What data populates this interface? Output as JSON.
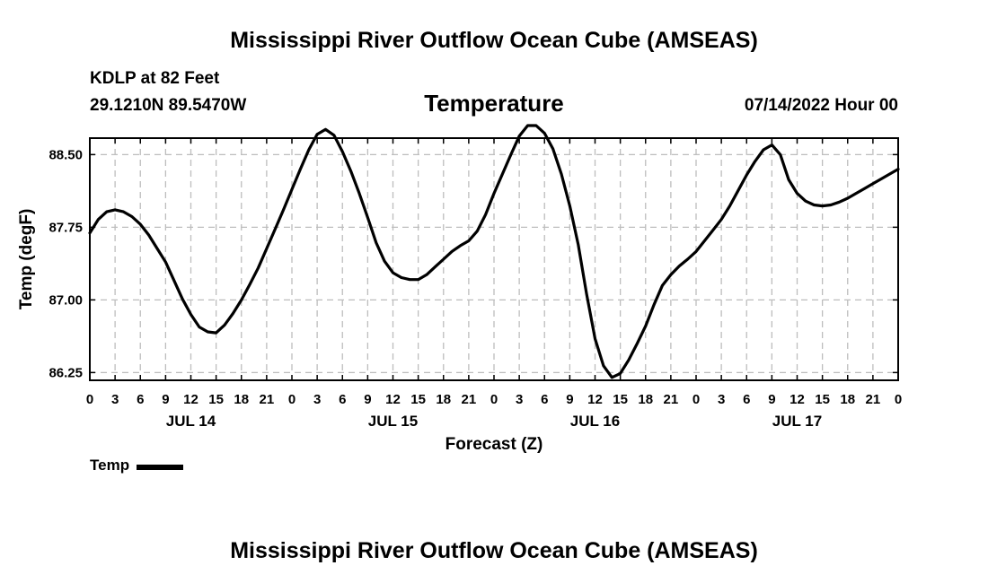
{
  "header": {
    "title": "Mississippi River Outflow Ocean Cube (AMSEAS)",
    "station": "KDLP at 82 Feet",
    "coords": "29.1210N  89.5470W",
    "variable": "Temperature",
    "datetime": "07/14/2022 Hour 00"
  },
  "footer": {
    "title": "Mississippi River Outflow Ocean Cube (AMSEAS)"
  },
  "legend": {
    "label": "Temp"
  },
  "chart_data": {
    "type": "line",
    "xlabel": "Forecast (Z)",
    "ylabel": "Temp (degF)",
    "xlim": [
      0,
      96
    ],
    "ylim": [
      86.17,
      88.67
    ],
    "yticks": [
      86.25,
      87.0,
      87.75,
      88.5
    ],
    "ytick_labels": [
      "86.25",
      "87.00",
      "87.75",
      "88.50"
    ],
    "xticks": [
      0,
      3,
      6,
      9,
      12,
      15,
      18,
      21,
      24,
      27,
      30,
      33,
      36,
      39,
      42,
      45,
      48,
      51,
      54,
      57,
      60,
      63,
      66,
      69,
      72,
      75,
      78,
      81,
      84,
      87,
      90,
      93,
      96
    ],
    "xtick_labels": [
      "0",
      "3",
      "6",
      "9",
      "12",
      "15",
      "18",
      "21",
      "0",
      "3",
      "6",
      "9",
      "12",
      "15",
      "18",
      "21",
      "0",
      "3",
      "6",
      "9",
      "12",
      "15",
      "18",
      "21",
      "0",
      "3",
      "6",
      "9",
      "12",
      "15",
      "18",
      "21",
      "0"
    ],
    "day_labels": [
      {
        "label": "JUL 14",
        "hour": 12
      },
      {
        "label": "JUL 15",
        "hour": 36
      },
      {
        "label": "JUL 16",
        "hour": 60
      },
      {
        "label": "JUL 17",
        "hour": 84
      }
    ],
    "grid": true,
    "series": [
      {
        "name": "Temp",
        "color": "#000000",
        "x": [
          0,
          1,
          2,
          3,
          4,
          5,
          6,
          7,
          8,
          9,
          10,
          11,
          12,
          13,
          14,
          15,
          16,
          17,
          18,
          19,
          20,
          21,
          22,
          23,
          24,
          25,
          26,
          27,
          28,
          29,
          30,
          31,
          32,
          33,
          34,
          35,
          36,
          37,
          38,
          39,
          40,
          41,
          42,
          43,
          44,
          45,
          46,
          47,
          48,
          49,
          50,
          51,
          52,
          53,
          54,
          55,
          56,
          57,
          58,
          59,
          60,
          61,
          62,
          63,
          64,
          65,
          66,
          67,
          68,
          69,
          70,
          71,
          72,
          73,
          74,
          75,
          76,
          77,
          78,
          79,
          80,
          81,
          82,
          83,
          84,
          85,
          86,
          87,
          88,
          89,
          90,
          91,
          92,
          93,
          94,
          95,
          96
        ],
        "values": [
          87.69,
          87.83,
          87.91,
          87.93,
          87.91,
          87.86,
          87.78,
          87.67,
          87.53,
          87.39,
          87.2,
          87.01,
          86.85,
          86.72,
          86.67,
          86.66,
          86.74,
          86.86,
          87.0,
          87.16,
          87.33,
          87.53,
          87.73,
          87.93,
          88.14,
          88.35,
          88.55,
          88.71,
          88.76,
          88.7,
          88.53,
          88.33,
          88.1,
          87.85,
          87.59,
          87.4,
          87.28,
          87.23,
          87.21,
          87.21,
          87.26,
          87.34,
          87.42,
          87.5,
          87.56,
          87.61,
          87.71,
          87.88,
          88.1,
          88.3,
          88.5,
          88.69,
          88.8,
          88.8,
          88.72,
          88.56,
          88.3,
          87.97,
          87.57,
          87.06,
          86.6,
          86.32,
          86.2,
          86.24,
          86.38,
          86.55,
          86.73,
          86.95,
          87.15,
          87.26,
          87.35,
          87.42,
          87.5,
          87.61,
          87.72,
          87.83,
          87.97,
          88.13,
          88.29,
          88.43,
          88.55,
          88.6,
          88.5,
          88.24,
          88.1,
          88.02,
          87.98,
          87.97,
          87.98,
          88.01,
          88.05,
          88.1,
          88.15,
          88.2,
          88.25,
          88.3,
          88.35
        ]
      }
    ]
  }
}
